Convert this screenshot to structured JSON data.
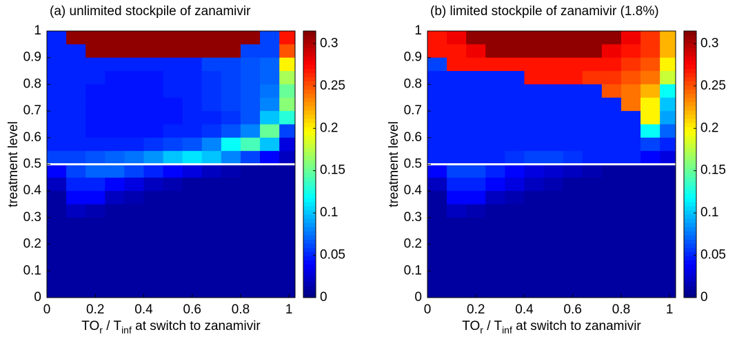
{
  "chart_data": [
    {
      "type": "heatmap",
      "title": "(a) unlimited stockpile of zanamivir",
      "xlabel": [
        "TO",
        "r",
        " / T",
        "inf",
        " at switch to zanamivir"
      ],
      "ylabel": "treatment level",
      "x": [
        0.04,
        0.12,
        0.2,
        0.28,
        0.36,
        0.44,
        0.52,
        0.6,
        0.68,
        0.76,
        0.84,
        0.92,
        1.0
      ],
      "y": [
        0.975,
        0.925,
        0.875,
        0.825,
        0.775,
        0.725,
        0.675,
        0.625,
        0.575,
        0.525,
        0.475,
        0.425,
        0.375,
        0.325,
        0.275,
        0.225,
        0.175,
        0.125,
        0.075,
        0.025
      ],
      "z": [
        [
          0.05,
          0.31,
          0.31,
          0.31,
          0.31,
          0.31,
          0.31,
          0.31,
          0.31,
          0.31,
          0.31,
          0.06,
          0.27
        ],
        [
          0.05,
          0.05,
          0.31,
          0.31,
          0.31,
          0.31,
          0.31,
          0.31,
          0.31,
          0.31,
          0.06,
          0.06,
          0.25
        ],
        [
          0.05,
          0.05,
          0.05,
          0.05,
          0.05,
          0.05,
          0.05,
          0.05,
          0.06,
          0.06,
          0.065,
          0.07,
          0.2
        ],
        [
          0.05,
          0.05,
          0.05,
          0.045,
          0.045,
          0.045,
          0.05,
          0.05,
          0.055,
          0.06,
          0.065,
          0.07,
          0.17
        ],
        [
          0.05,
          0.05,
          0.045,
          0.045,
          0.045,
          0.045,
          0.05,
          0.05,
          0.055,
          0.06,
          0.065,
          0.075,
          0.15
        ],
        [
          0.05,
          0.05,
          0.045,
          0.045,
          0.045,
          0.045,
          0.045,
          0.05,
          0.055,
          0.06,
          0.065,
          0.08,
          0.16
        ],
        [
          0.05,
          0.05,
          0.045,
          0.045,
          0.045,
          0.045,
          0.045,
          0.05,
          0.05,
          0.055,
          0.065,
          0.1,
          0.13
        ],
        [
          0.05,
          0.05,
          0.045,
          0.045,
          0.045,
          0.045,
          0.05,
          0.05,
          0.055,
          0.065,
          0.08,
          0.15,
          0.06
        ],
        [
          0.05,
          0.05,
          0.05,
          0.05,
          0.05,
          0.055,
          0.06,
          0.065,
          0.08,
          0.12,
          0.14,
          0.1,
          0.03
        ],
        [
          0.06,
          0.06,
          0.065,
          0.07,
          0.075,
          0.085,
          0.1,
          0.11,
          0.1,
          0.08,
          0.06,
          0.04,
          0.02
        ],
        [
          0.04,
          0.06,
          0.07,
          0.07,
          0.06,
          0.05,
          0.04,
          0.03,
          0.02,
          0.015,
          0.01,
          0.01,
          0.01
        ],
        [
          0.02,
          0.05,
          0.05,
          0.04,
          0.03,
          0.02,
          0.015,
          0.01,
          0.01,
          0.01,
          0.01,
          0.01,
          0.01
        ],
        [
          0.01,
          0.04,
          0.04,
          0.02,
          0.015,
          0.01,
          0.01,
          0.01,
          0.01,
          0.01,
          0.01,
          0.01,
          0.01
        ],
        [
          0.01,
          0.02,
          0.015,
          0.01,
          0.01,
          0.01,
          0.01,
          0.01,
          0.01,
          0.01,
          0.01,
          0.01,
          0.01
        ],
        [
          0.01,
          0.01,
          0.01,
          0.01,
          0.01,
          0.01,
          0.01,
          0.01,
          0.01,
          0.01,
          0.01,
          0.01,
          0.01
        ],
        [
          0.01,
          0.01,
          0.01,
          0.01,
          0.01,
          0.01,
          0.01,
          0.01,
          0.01,
          0.01,
          0.01,
          0.01,
          0.01
        ],
        [
          0.01,
          0.01,
          0.01,
          0.01,
          0.01,
          0.01,
          0.01,
          0.01,
          0.01,
          0.01,
          0.01,
          0.01,
          0.01
        ],
        [
          0.01,
          0.01,
          0.01,
          0.01,
          0.01,
          0.01,
          0.01,
          0.01,
          0.01,
          0.01,
          0.01,
          0.01,
          0.01
        ],
        [
          0.01,
          0.01,
          0.01,
          0.01,
          0.01,
          0.01,
          0.01,
          0.01,
          0.01,
          0.01,
          0.01,
          0.01,
          0.01
        ],
        [
          0.01,
          0.01,
          0.01,
          0.01,
          0.01,
          0.01,
          0.01,
          0.01,
          0.01,
          0.01,
          0.01,
          0.01,
          0.01
        ]
      ],
      "zlim": [
        0,
        0.315
      ],
      "xlim": [
        0,
        1.025
      ],
      "ylim": [
        0,
        1
      ],
      "xticks": [
        0,
        0.2,
        0.4,
        0.6,
        0.8,
        1
      ],
      "yticks": [
        0,
        0.1,
        0.2,
        0.3,
        0.4,
        0.5,
        0.6,
        0.7,
        0.8,
        0.9,
        1
      ],
      "colorbar_ticks": [
        0,
        0.05,
        0.1,
        0.15,
        0.2,
        0.25,
        0.3
      ],
      "colormap": "jet",
      "hline": 0.5,
      "hline_color": "#ffffff"
    },
    {
      "type": "heatmap",
      "title": "(b) limited stockpile of zanamivir (1.8%)",
      "xlabel": [
        "TO",
        "r",
        " / T",
        "inf",
        " at switch to zanamivir"
      ],
      "ylabel": "treatment level",
      "x": [
        0.04,
        0.12,
        0.2,
        0.28,
        0.36,
        0.44,
        0.52,
        0.6,
        0.68,
        0.76,
        0.84,
        0.92,
        1.0
      ],
      "y": [
        0.975,
        0.925,
        0.875,
        0.825,
        0.775,
        0.725,
        0.675,
        0.625,
        0.575,
        0.525,
        0.475,
        0.425,
        0.375,
        0.325,
        0.275,
        0.225,
        0.175,
        0.125,
        0.075,
        0.025
      ],
      "z": [
        [
          0.27,
          0.28,
          0.31,
          0.31,
          0.31,
          0.31,
          0.31,
          0.31,
          0.31,
          0.31,
          0.28,
          0.26,
          0.22
        ],
        [
          0.27,
          0.27,
          0.28,
          0.31,
          0.31,
          0.31,
          0.31,
          0.31,
          0.31,
          0.28,
          0.27,
          0.26,
          0.22
        ],
        [
          0.06,
          0.27,
          0.27,
          0.27,
          0.27,
          0.27,
          0.27,
          0.27,
          0.27,
          0.27,
          0.26,
          0.25,
          0.2
        ],
        [
          0.05,
          0.05,
          0.05,
          0.05,
          0.05,
          0.27,
          0.27,
          0.27,
          0.26,
          0.26,
          0.25,
          0.24,
          0.18
        ],
        [
          0.05,
          0.05,
          0.05,
          0.05,
          0.05,
          0.05,
          0.05,
          0.05,
          0.05,
          0.25,
          0.24,
          0.22,
          0.12
        ],
        [
          0.05,
          0.05,
          0.05,
          0.05,
          0.05,
          0.05,
          0.05,
          0.05,
          0.05,
          0.05,
          0.24,
          0.2,
          0.1
        ],
        [
          0.05,
          0.05,
          0.05,
          0.05,
          0.05,
          0.05,
          0.05,
          0.05,
          0.05,
          0.05,
          0.05,
          0.2,
          0.09
        ],
        [
          0.05,
          0.05,
          0.05,
          0.05,
          0.05,
          0.05,
          0.05,
          0.05,
          0.05,
          0.05,
          0.05,
          0.12,
          0.07
        ],
        [
          0.05,
          0.05,
          0.05,
          0.05,
          0.05,
          0.05,
          0.05,
          0.05,
          0.05,
          0.05,
          0.05,
          0.06,
          0.05
        ],
        [
          0.05,
          0.05,
          0.05,
          0.05,
          0.055,
          0.06,
          0.06,
          0.055,
          0.05,
          0.05,
          0.05,
          0.04,
          0.03
        ],
        [
          0.04,
          0.06,
          0.06,
          0.05,
          0.04,
          0.03,
          0.025,
          0.02,
          0.015,
          0.01,
          0.01,
          0.01,
          0.01
        ],
        [
          0.02,
          0.05,
          0.05,
          0.04,
          0.03,
          0.02,
          0.015,
          0.01,
          0.01,
          0.01,
          0.01,
          0.01,
          0.01
        ],
        [
          0.01,
          0.04,
          0.04,
          0.02,
          0.015,
          0.01,
          0.01,
          0.01,
          0.01,
          0.01,
          0.01,
          0.01,
          0.01
        ],
        [
          0.01,
          0.02,
          0.015,
          0.01,
          0.01,
          0.01,
          0.01,
          0.01,
          0.01,
          0.01,
          0.01,
          0.01,
          0.01
        ],
        [
          0.01,
          0.01,
          0.01,
          0.01,
          0.01,
          0.01,
          0.01,
          0.01,
          0.01,
          0.01,
          0.01,
          0.01,
          0.01
        ],
        [
          0.01,
          0.01,
          0.01,
          0.01,
          0.01,
          0.01,
          0.01,
          0.01,
          0.01,
          0.01,
          0.01,
          0.01,
          0.01
        ],
        [
          0.01,
          0.01,
          0.01,
          0.01,
          0.01,
          0.01,
          0.01,
          0.01,
          0.01,
          0.01,
          0.01,
          0.01,
          0.01
        ],
        [
          0.01,
          0.01,
          0.01,
          0.01,
          0.01,
          0.01,
          0.01,
          0.01,
          0.01,
          0.01,
          0.01,
          0.01,
          0.01
        ],
        [
          0.01,
          0.01,
          0.01,
          0.01,
          0.01,
          0.01,
          0.01,
          0.01,
          0.01,
          0.01,
          0.01,
          0.01,
          0.01
        ],
        [
          0.01,
          0.01,
          0.01,
          0.01,
          0.01,
          0.01,
          0.01,
          0.01,
          0.01,
          0.01,
          0.01,
          0.01,
          0.01
        ]
      ],
      "zlim": [
        0,
        0.315
      ],
      "xlim": [
        0,
        1.025
      ],
      "ylim": [
        0,
        1
      ],
      "xticks": [
        0,
        0.2,
        0.4,
        0.6,
        0.8,
        1
      ],
      "yticks": [
        0,
        0.1,
        0.2,
        0.3,
        0.4,
        0.5,
        0.6,
        0.7,
        0.8,
        0.9,
        1
      ],
      "colorbar_ticks": [
        0,
        0.05,
        0.1,
        0.15,
        0.2,
        0.25,
        0.3
      ],
      "colormap": "jet",
      "hline": 0.5,
      "hline_color": "#ffffff"
    }
  ]
}
